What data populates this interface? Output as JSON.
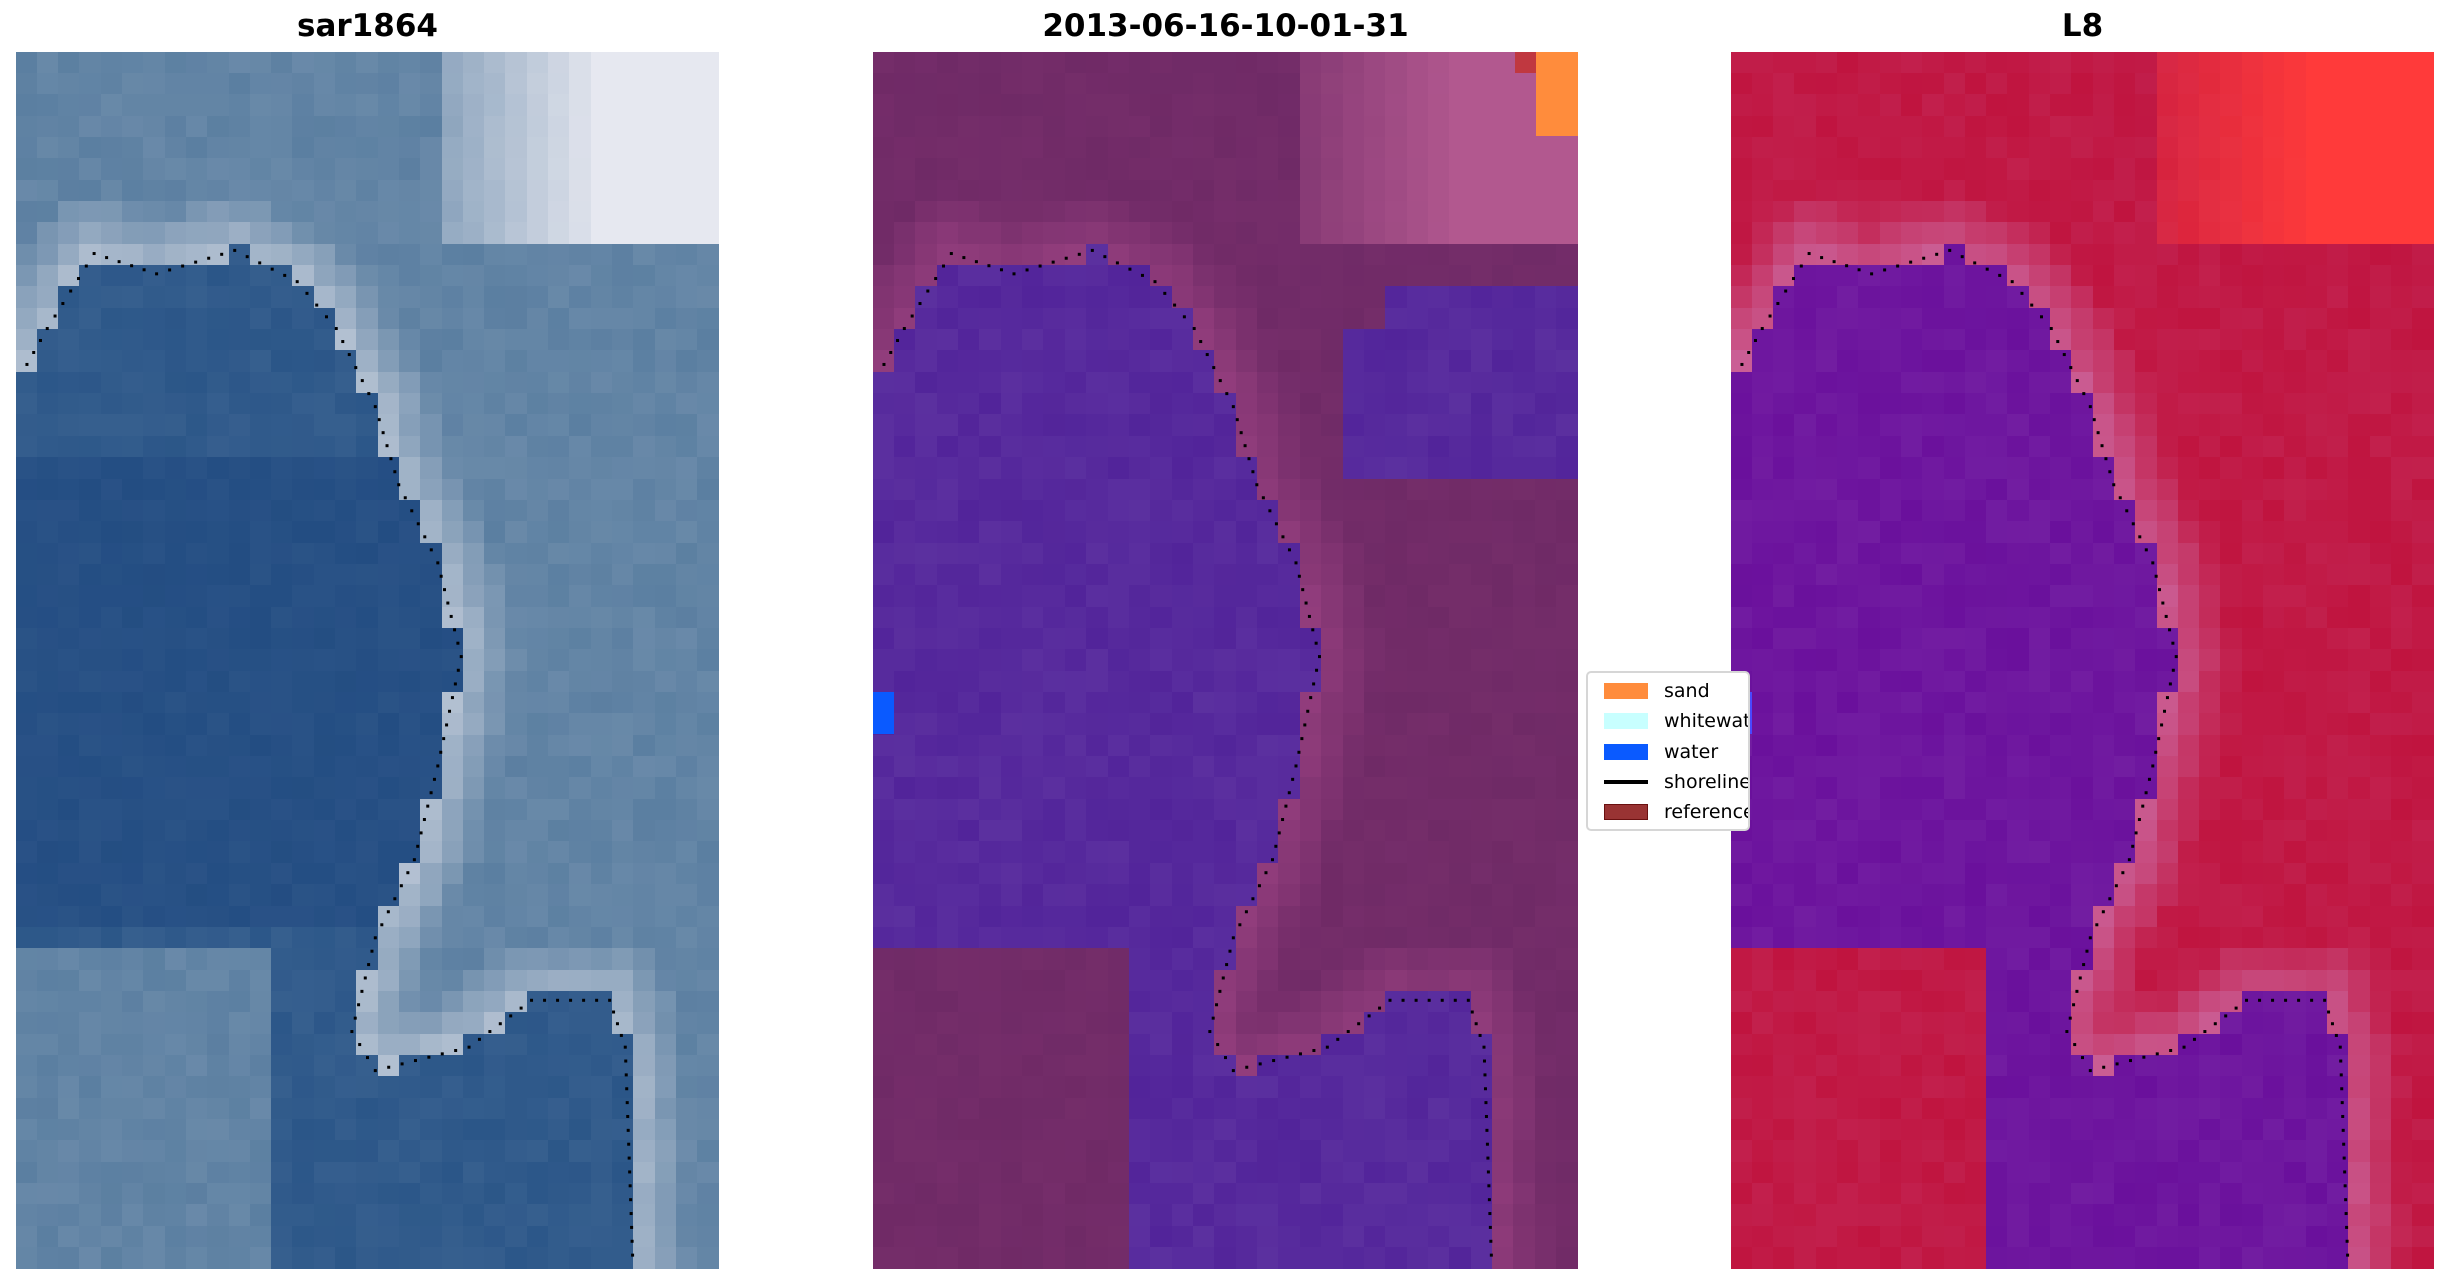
{
  "panels": [
    {
      "title": "sar1864",
      "palette": {
        "water": "#2b5688",
        "land": "#5b7fa1",
        "shore": "#a9b9cc",
        "bright": "#e6e8f0"
      }
    },
    {
      "title": "2013-06-16-10-01-31",
      "palette": {
        "water": "#52249a",
        "land": "#6f2a66",
        "shore": "#8e3b7a",
        "bright": "#b2588f"
      }
    },
    {
      "title": "L8",
      "palette": {
        "water": "#6a109c",
        "land": "#c0143f",
        "shore": "#c9558a",
        "bright": "#ff3a3a"
      }
    }
  ],
  "legend": {
    "items": [
      {
        "label": "sand",
        "color": "#ff8c3c",
        "kind": "patch"
      },
      {
        "label": "whitewater",
        "color": "#c8ffff",
        "kind": "patch"
      },
      {
        "label": "water",
        "color": "#0a5aff",
        "kind": "patch"
      },
      {
        "label": "shoreline",
        "color": "#000000",
        "kind": "line"
      },
      {
        "label": "reference",
        "color": "#993333",
        "kind": "patch"
      }
    ]
  },
  "chart_data": {
    "type": "heatmap",
    "panels": [
      "sar1864",
      "2013-06-16-10-01-31",
      "L8"
    ],
    "legend_entries": [
      "sand",
      "whitewater",
      "water",
      "shoreline",
      "reference"
    ],
    "legend_placement": "center",
    "axes": "off"
  }
}
